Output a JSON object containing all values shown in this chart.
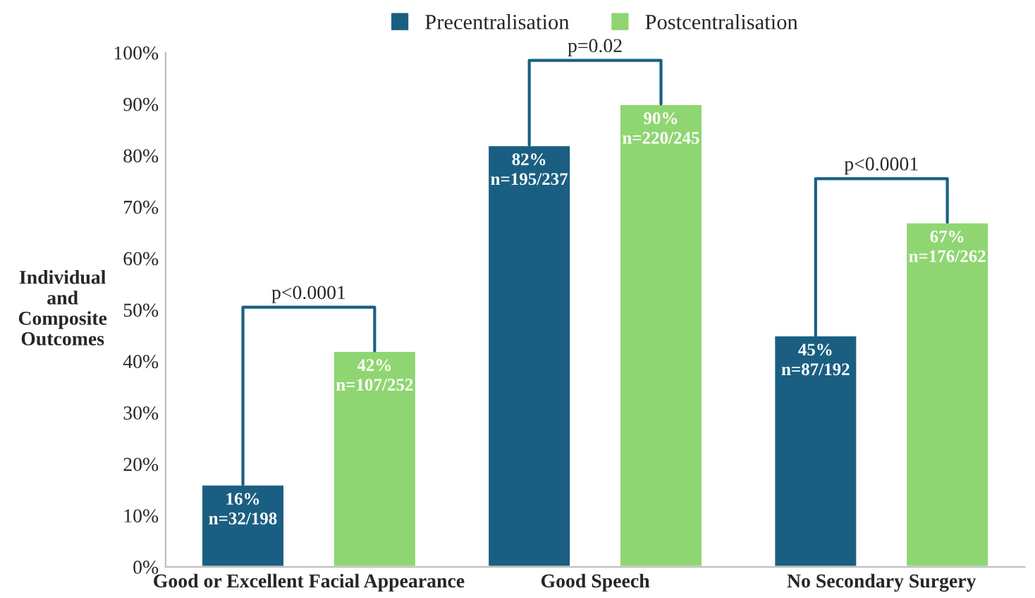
{
  "chart_data": {
    "type": "bar",
    "ylabel": "Individual\nand\nComposite\nOutcomes",
    "categories": [
      "Good or Excellent Facial Appearance",
      "Good Speech",
      "No Secondary Surgery"
    ],
    "series": [
      {
        "name": "Precentralisation",
        "color": "#1a5f82",
        "values": [
          16,
          82,
          45
        ],
        "value_labels": [
          "16%\nn=32/198",
          "82%\nn=195/237",
          "45%\nn=87/192"
        ]
      },
      {
        "name": "Postcentralisation",
        "color": "#8fd672",
        "values": [
          42,
          90,
          67
        ],
        "value_labels": [
          "42%\nn=107/252",
          "90%\nn=220/245",
          "67%\nn=176/262"
        ]
      }
    ],
    "ylim": [
      0,
      100
    ],
    "yticks": [
      {
        "value": 0,
        "label": "0%"
      },
      {
        "value": 10,
        "label": "10%"
      },
      {
        "value": 20,
        "label": "20%"
      },
      {
        "value": 30,
        "label": "30%"
      },
      {
        "value": 40,
        "label": "40%"
      },
      {
        "value": 50,
        "label": "50%"
      },
      {
        "value": 60,
        "label": "60%"
      },
      {
        "value": 70,
        "label": "70%"
      },
      {
        "value": 80,
        "label": "80%"
      },
      {
        "value": 90,
        "label": "90%"
      },
      {
        "value": 100,
        "label": "100%"
      }
    ],
    "annotations": [
      "p<0.0001",
      "p=0.02",
      "p<0.0001"
    ],
    "grid": false,
    "legend": "top"
  }
}
